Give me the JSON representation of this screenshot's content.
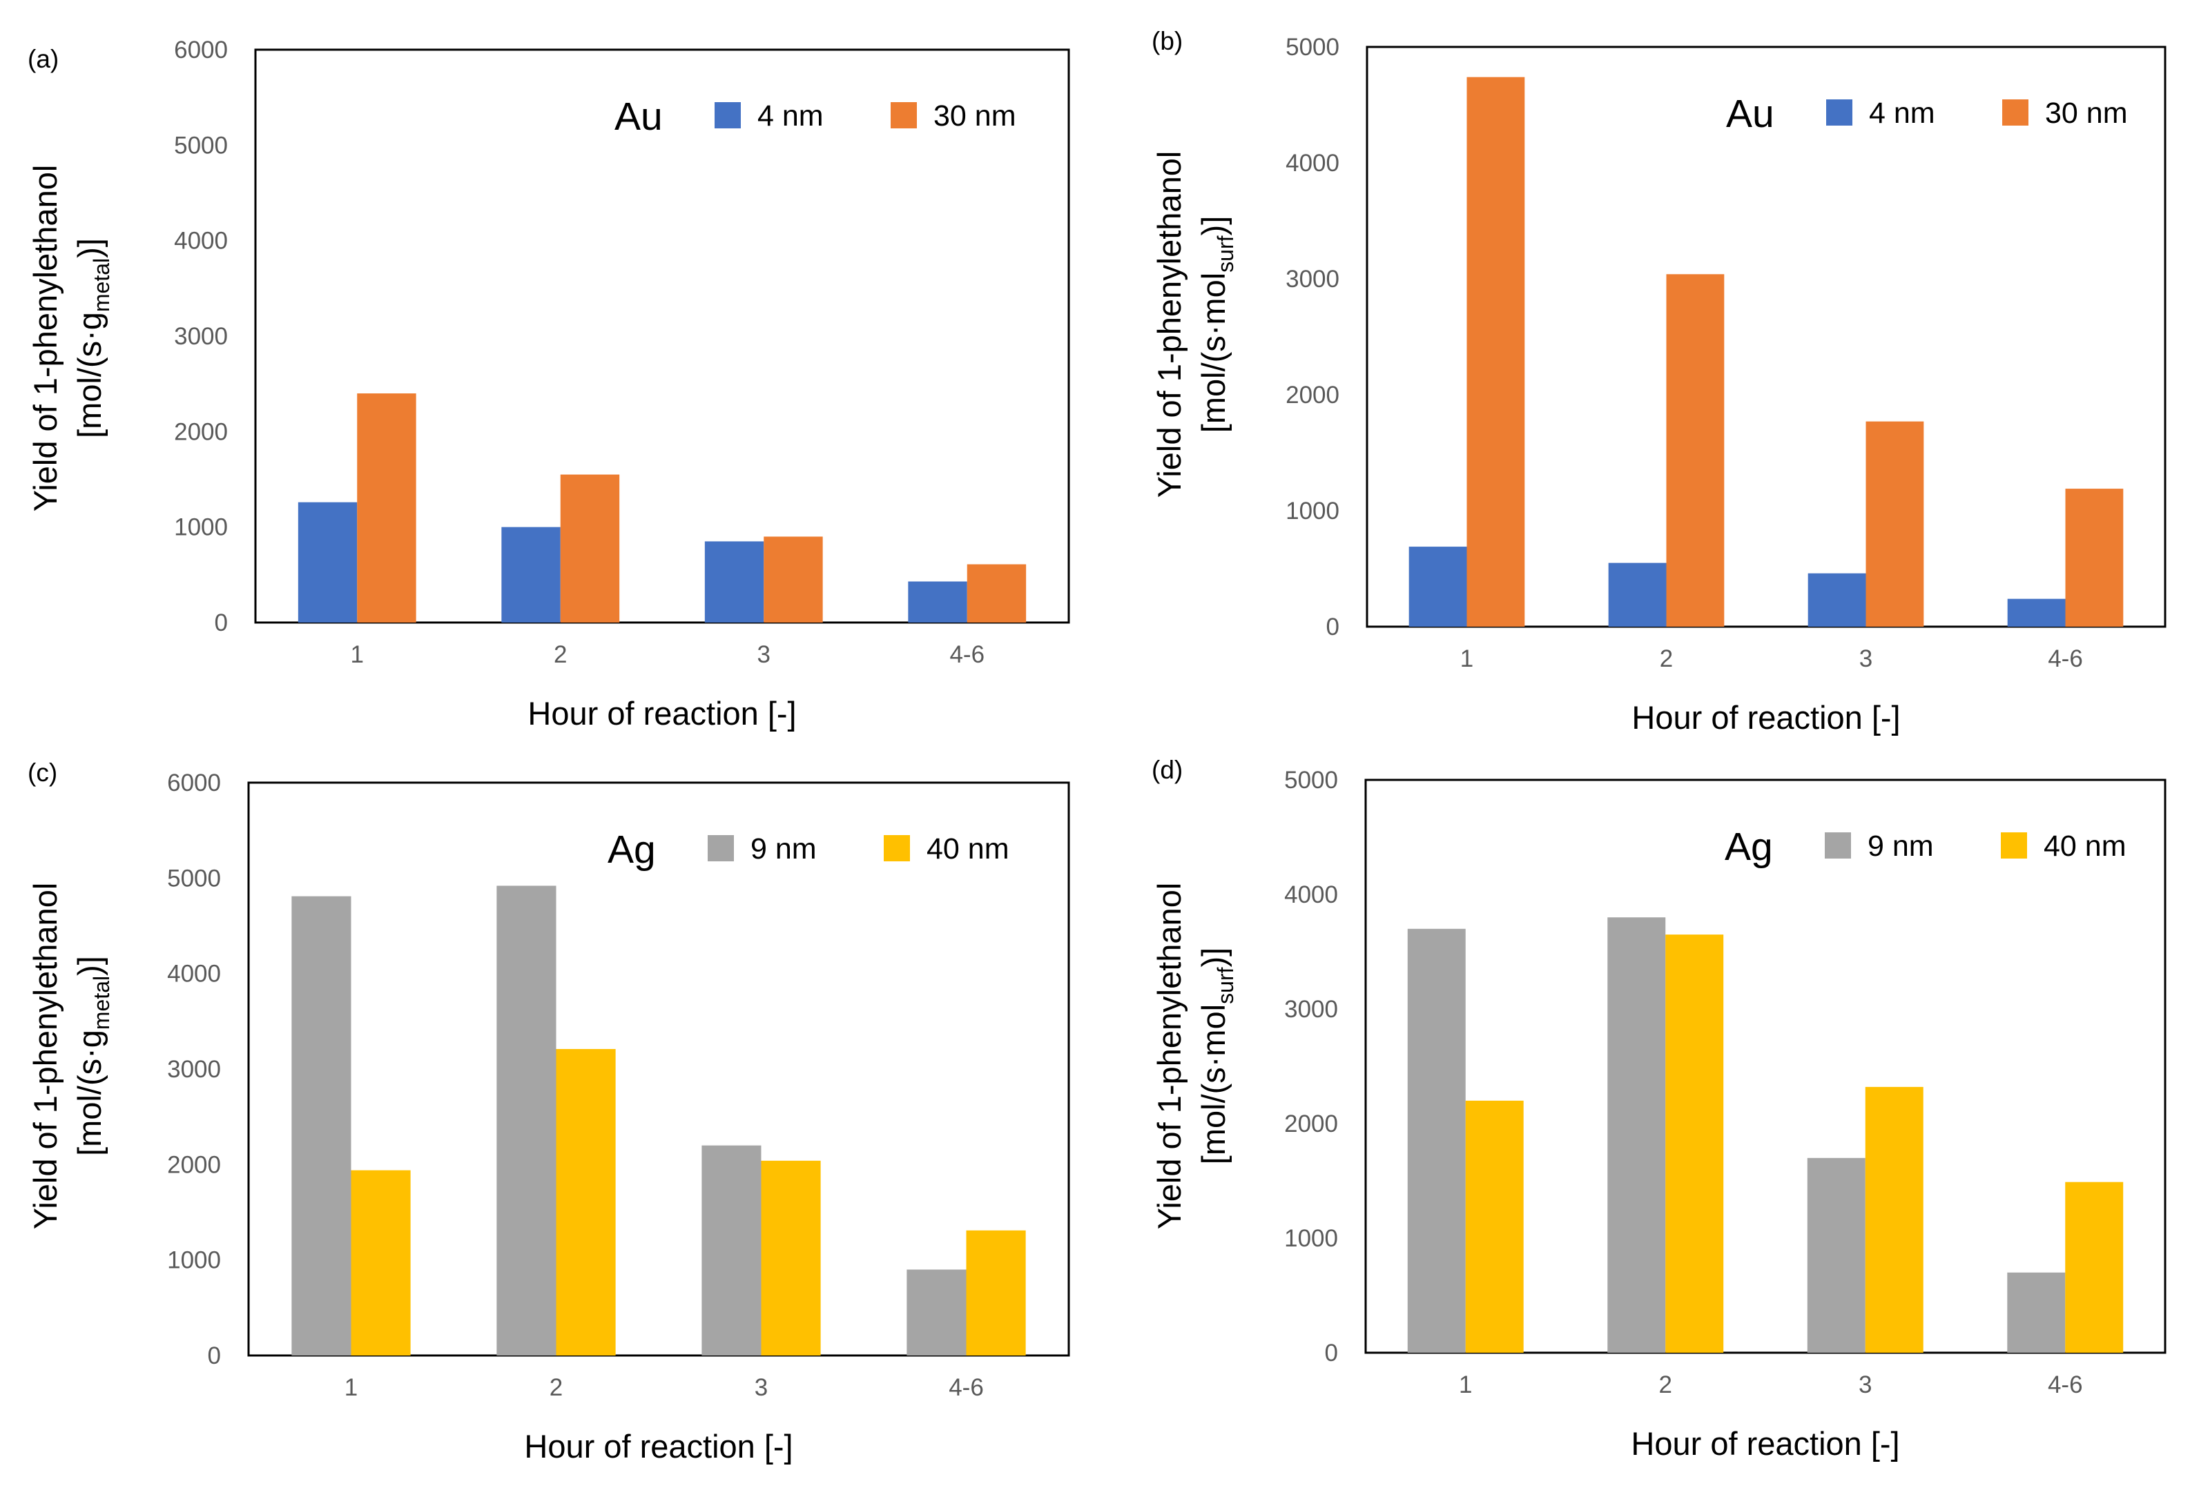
{
  "figure": {
    "x_axis_label": "Hour of reaction [-]",
    "categories": [
      "1",
      "2",
      "3",
      "4-6"
    ]
  },
  "chart_data": [
    {
      "panel": "(a)",
      "type": "bar",
      "metal": "Au",
      "title": "",
      "xlabel": "Hour of reaction [-]",
      "ylabel": {
        "line1": "Yield of 1-phenylethanol",
        "prefix": "[mol/(s·g",
        "subscript": "metal",
        "suffix": ")]"
      },
      "ylim": [
        0,
        6000
      ],
      "yticks": [
        0,
        1000,
        2000,
        3000,
        4000,
        5000,
        6000
      ],
      "categories": [
        "1",
        "2",
        "3",
        "4-6"
      ],
      "series": [
        {
          "name": "4 nm",
          "color": "#4472C4",
          "values": [
            1260,
            1000,
            850,
            430
          ]
        },
        {
          "name": "30 nm",
          "color": "#ED7D31",
          "values": [
            2400,
            1550,
            900,
            610
          ]
        }
      ],
      "grid": false,
      "legend": "top-right"
    },
    {
      "panel": "(b)",
      "type": "bar",
      "metal": "Au",
      "title": "",
      "xlabel": "Hour of reaction [-]",
      "ylabel": {
        "line1": "Yield of 1-phenylethanol",
        "prefix": "[mol/(s·mol",
        "subscript": "surf",
        "suffix": ")]"
      },
      "ylim": [
        0,
        5000
      ],
      "yticks": [
        0,
        1000,
        2000,
        3000,
        4000,
        5000
      ],
      "categories": [
        "1",
        "2",
        "3",
        "4-6"
      ],
      "series": [
        {
          "name": "4 nm",
          "color": "#4472C4",
          "values": [
            690,
            550,
            460,
            240
          ]
        },
        {
          "name": "30 nm",
          "color": "#ED7D31",
          "values": [
            4740,
            3040,
            1770,
            1190
          ]
        }
      ],
      "grid": false,
      "legend": "top-right"
    },
    {
      "panel": "(c)",
      "type": "bar",
      "metal": "Ag",
      "title": "",
      "xlabel": "Hour of reaction [-]",
      "ylabel": {
        "line1": "Yield of 1-phenylethanol",
        "prefix": "[mol/(s·g",
        "subscript": "metal",
        "suffix": ")]"
      },
      "ylim": [
        0,
        6000
      ],
      "yticks": [
        0,
        1000,
        2000,
        3000,
        4000,
        5000,
        6000
      ],
      "categories": [
        "1",
        "2",
        "3",
        "4-6"
      ],
      "series": [
        {
          "name": "9 nm",
          "color": "#A5A5A5",
          "values": [
            4810,
            4920,
            2200,
            900
          ]
        },
        {
          "name": "40 nm",
          "color": "#FFC000",
          "values": [
            1940,
            3210,
            2040,
            1310
          ]
        }
      ],
      "grid": false,
      "legend": "top-right"
    },
    {
      "panel": "(d)",
      "type": "bar",
      "metal": "Ag",
      "title": "",
      "xlabel": "Hour of reaction [-]",
      "ylabel": {
        "line1": "Yield of 1-phenylethanol",
        "prefix": "[mol/(s·mol",
        "subscript": "surf",
        "suffix": ")]"
      },
      "ylim": [
        0,
        5000
      ],
      "yticks": [
        0,
        1000,
        2000,
        3000,
        4000,
        5000
      ],
      "categories": [
        "1",
        "2",
        "3",
        "4-6"
      ],
      "series": [
        {
          "name": "9 nm",
          "color": "#A5A5A5",
          "values": [
            3700,
            3800,
            1700,
            700
          ]
        },
        {
          "name": "40 nm",
          "color": "#FFC000",
          "values": [
            2200,
            3650,
            2320,
            1490
          ]
        }
      ],
      "grid": false,
      "legend": "top-right"
    }
  ]
}
